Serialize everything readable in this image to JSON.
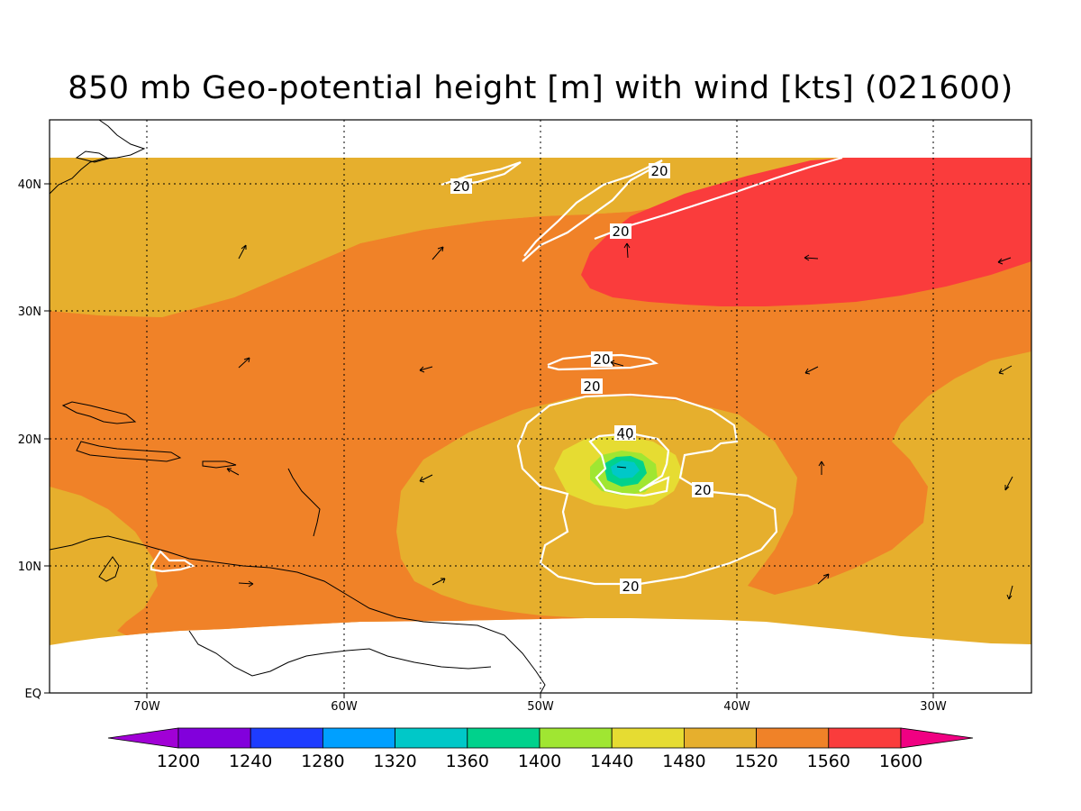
{
  "title": "850 mb Geo-potential height [m] with wind [kts] (021600)",
  "lat_labels": [
    "EQ",
    "10N",
    "20N",
    "30N",
    "40N"
  ],
  "lon_labels": [
    "70W",
    "60W",
    "50W",
    "40W",
    "30W"
  ],
  "colorbar": {
    "ticks": [
      "1200",
      "1240",
      "1280",
      "1320",
      "1360",
      "1400",
      "1440",
      "1480",
      "1520",
      "1560",
      "1600"
    ],
    "colors": [
      "#a100d6",
      "#8200dc",
      "#1e3cff",
      "#00a0ff",
      "#00c8c8",
      "#00d28c",
      "#a0e632",
      "#e6dc32",
      "#e6af2d",
      "#f08228",
      "#fa3c3c",
      "#f00082"
    ]
  },
  "contour_labels": [
    "20",
    "20",
    "20",
    "20",
    "20",
    "40",
    "20",
    "20"
  ],
  "colors": {
    "h1480": "#e6dc32",
    "h1520": "#e6af2d",
    "h1560": "#f08228",
    "h1600": "#fa3c3c",
    "h1440": "#a0e632",
    "h1400": "#00d28c",
    "h1360": "#00c8c8",
    "h1280": "#00a0ff"
  }
}
